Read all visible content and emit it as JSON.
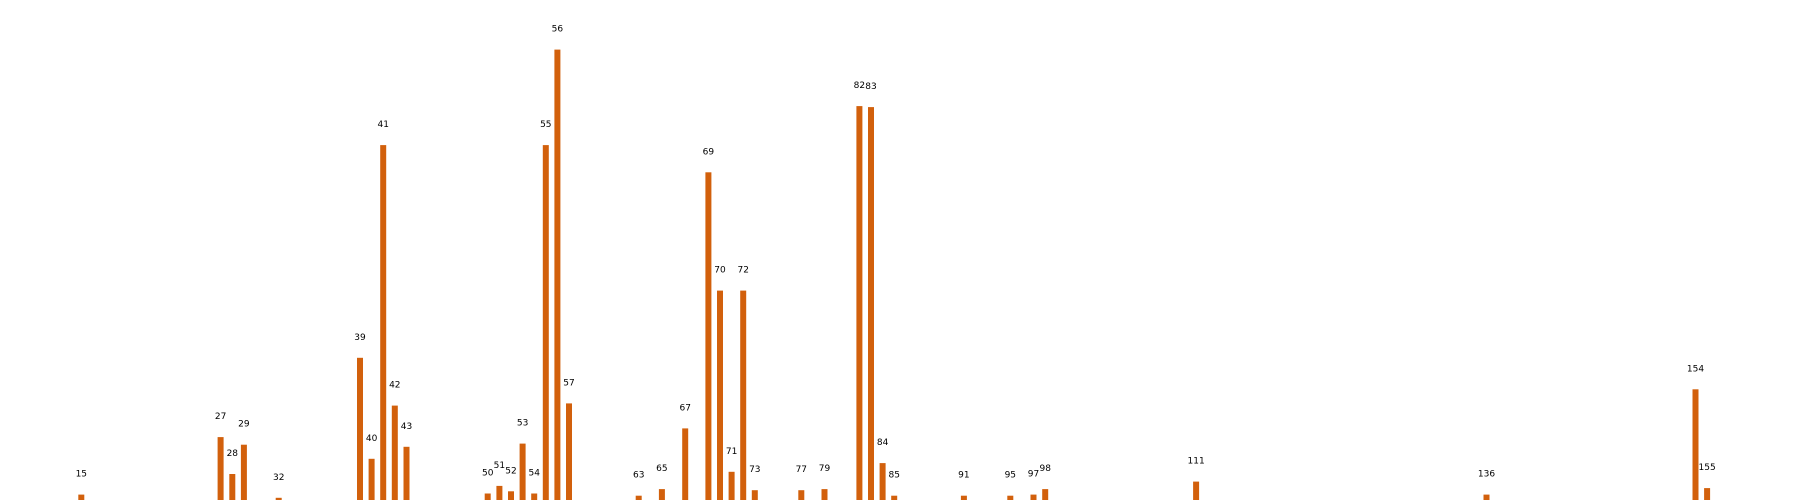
{
  "chart_data": {
    "type": "bar",
    "title": "",
    "xlabel": "",
    "ylabel": "",
    "bar_color": "#d2600c",
    "grid": false,
    "axes_visible": false,
    "xlim": [
      8,
      163
    ],
    "ylim": [
      0,
      440
    ],
    "categories": [
      "15",
      "27",
      "28",
      "29",
      "32",
      "39",
      "40",
      "41",
      "42",
      "43",
      "50",
      "51",
      "52",
      "53",
      "54",
      "55",
      "56",
      "57",
      "63",
      "65",
      "67",
      "69",
      "70",
      "71",
      "72",
      "73",
      "77",
      "79",
      "82",
      "83",
      "84",
      "85",
      "91",
      "95",
      "97",
      "98",
      "111",
      "136",
      "154",
      "155"
    ],
    "values": [
      5,
      58,
      24,
      51,
      2,
      131,
      38,
      327,
      87,
      49,
      6,
      13,
      8,
      52,
      6,
      327,
      415,
      89,
      4,
      10,
      66,
      302,
      193,
      26,
      193,
      9,
      9,
      10,
      363,
      362,
      34,
      4,
      4,
      4,
      5,
      10,
      17,
      5,
      102,
      11
    ]
  }
}
